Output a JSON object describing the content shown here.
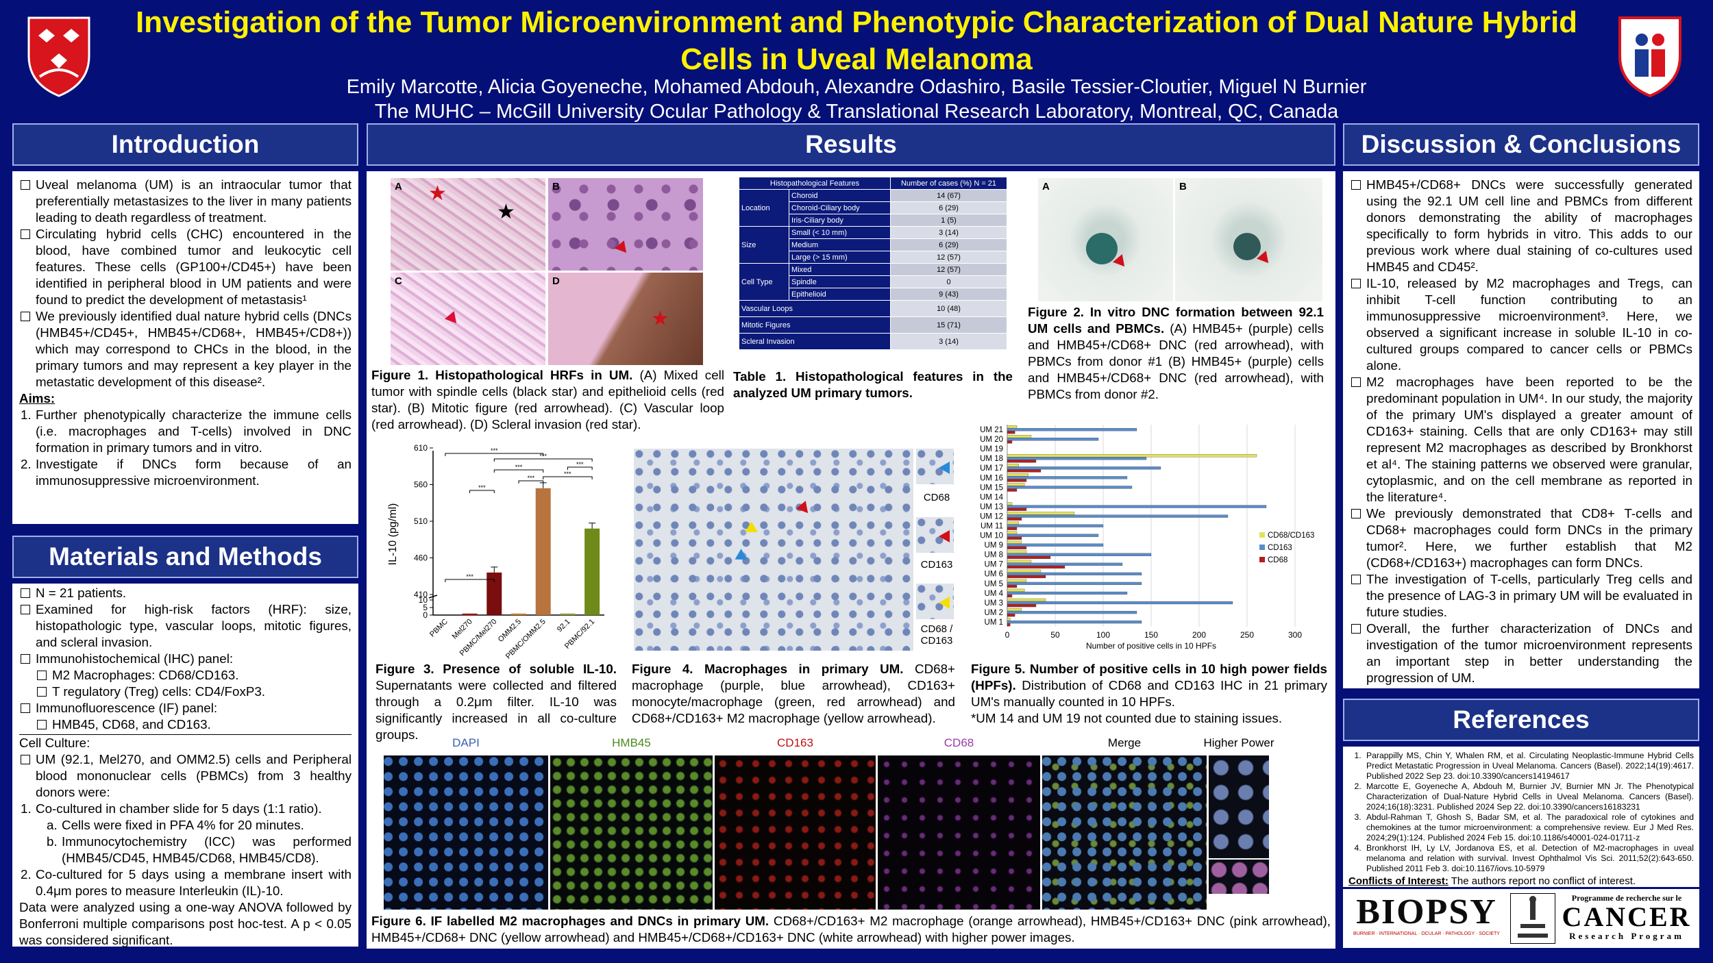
{
  "title": "Investigation of the Tumor Microenvironment and Phenotypic Characterization of Dual Nature Hybrid Cells in Uveal Melanoma",
  "authors": "Emily Marcotte, Alicia Goyeneche, Mohamed Abdouh, Alexandre Odashiro, Basile Tessier-Cloutier, Miguel N Burnier",
  "affiliation": "The MUHC – McGill University Ocular Pathology & Translational Research Laboratory, Montreal, QC, Canada",
  "sections": {
    "introduction": "Introduction",
    "methods": "Materials and Methods",
    "results": "Results",
    "discussion": "Discussion & Conclusions",
    "references": "References"
  },
  "intro": {
    "bullets": [
      "Uveal melanoma (UM) is an intraocular tumor that preferentially metastasizes to the liver in many patients leading to death regardless of treatment.",
      "Circulating hybrid cells (CHC) encountered in the blood, have combined tumor and leukocytic cell features. These cells (GP100+/CD45+) have been identified in peripheral blood in UM patients and were found to predict the development of metastasis¹",
      "We previously identified dual nature hybrid cells (DNCs (HMB45+/CD45+, HMB45+/CD68+, HMB45+/CD8+)) which may correspond to CHCs in the blood, in the primary tumors and may represent a key player in the metastatic development of this disease²."
    ],
    "aims_label": "Aims:",
    "aims": [
      "Further phenotypically characterize the immune cells (i.e. macrophages and T-cells) involved in DNC formation in primary tumors and in vitro.",
      "Investigate if DNCs form because of an immunosuppressive microenvironment."
    ]
  },
  "methods": {
    "bullets": [
      "N = 21 patients.",
      "Examined for high-risk factors (HRF): size, histopathologic type, vascular loops, mitotic figures, and scleral invasion.",
      "Immunohistochemical (IHC) panel:"
    ],
    "ihc_sub": [
      "M2 Macrophages: CD68/CD163.",
      "T regulatory (Treg) cells: CD4/FoxP3."
    ],
    "if_label": "Immunofluorescence (IF) panel:",
    "if_sub": [
      "HMB45, CD68, and CD163."
    ],
    "culture_label": "Cell Culture:",
    "culture_bullet": "UM (92.1, Mel270, and OMM2.5) cells and Peripheral blood mononuclear cells (PBMCs) from 3 healthy donors were:",
    "steps": [
      "Co-cultured in chamber slide for 5 days (1:1 ratio).",
      "Co-cultured for 5 days using a membrane insert with 0.4μm pores to measure Interleukin (IL)-10."
    ],
    "substeps": [
      "Cells were fixed in PFA 4% for 20 minutes.",
      "Immunocytochemistry (ICC) was performed (HMB45/CD45, HMB45/CD68, HMB45/CD8)."
    ],
    "closing": "Data were analyzed using a one-way ANOVA followed by Bonferroni multiple comparisons post hoc-test. A p < 0.05 was considered significant."
  },
  "fig1": {
    "panels": [
      "A",
      "B",
      "C",
      "D"
    ],
    "title": "Figure 1. Histopathological HRFs in UM.",
    "text": "(A) Mixed cell tumor with spindle cells (black star) and epithelioid cells (red star). (B) Mitotic figure (red arrowhead). (C) Vascular loop (red arrowhead). (D) Scleral invasion (red star)."
  },
  "table1": {
    "header": [
      "Histopathological Features",
      "Number of cases (%) N = 21"
    ],
    "rows": [
      [
        "Location",
        "Choroid",
        "14 (67)"
      ],
      [
        "",
        "Choroid-Ciliary body",
        "6 (29)"
      ],
      [
        "",
        "Iris-Ciliary body",
        "1 (5)"
      ],
      [
        "Size",
        "Small (< 10 mm)",
        "3 (14)"
      ],
      [
        "",
        "Medium",
        "6 (29)"
      ],
      [
        "",
        "Large (> 15 mm)",
        "12 (57)"
      ],
      [
        "Cell Type",
        "Mixed",
        "12 (57)"
      ],
      [
        "",
        "Spindle",
        "0"
      ],
      [
        "",
        "Epithelioid",
        "9 (43)"
      ],
      [
        "Vascular Loops",
        "",
        "10 (48)"
      ],
      [
        "Mitotic Figures",
        "",
        "15 (71)"
      ],
      [
        "Scleral Invasion",
        "",
        "3 (14)"
      ]
    ],
    "title": "Table 1. Histopathological features in the analyzed UM primary tumors."
  },
  "fig2": {
    "panels": [
      "A",
      "B"
    ],
    "title": "Figure 2. In vitro DNC formation between 92.1 UM cells and PBMCs.",
    "text": "(A) HMB45+ (purple) cells and HMB45+/CD68+ DNC (red arrowhead), with PBMCs from donor #1 (B) HMB45+ (purple) cells and HMB45+/CD68+ DNC (red arrowhead), with PBMCs from donor #2."
  },
  "fig3": {
    "title": "Figure 3. Presence of soluble IL-10.",
    "text": "Supernatants were collected and filtered through a 0.2μm filter. IL-10 was significantly increased in all co-culture groups.",
    "sig": "***"
  },
  "fig4": {
    "labels": [
      "CD68",
      "CD163",
      "CD68 / CD163"
    ],
    "title": "Figure 4. Macrophages in primary UM.",
    "text": "CD68+ macrophage (purple, blue arrowhead), CD163+ monocyte/macrophage (green, red arrowhead) and CD68+/CD163+ M2 macrophage (yellow arrowhead)."
  },
  "fig5": {
    "title": "Figure 5. Number of positive cells in 10 high power fields (HPFs).",
    "text": "Distribution of CD68 and CD163 IHC in 21 primary UM's manually counted in 10 HPFs.",
    "note": "*UM 14 and UM 19 not counted due to staining issues."
  },
  "fig6": {
    "columns": [
      "DAPI",
      "HMB45",
      "CD163",
      "CD68",
      "Merge",
      "Higher Power"
    ],
    "title": "Figure 6. IF labelled M2 macrophages and DNCs in primary UM.",
    "text": "CD68+/CD163+ M2 macrophage (orange arrowhead), HMB45+/CD163+ DNC (pink arrowhead), HMB45+/CD68+ DNC (yellow arrowhead) and HMB45+/CD68+/CD163+ DNC (white arrowhead) with higher power images."
  },
  "discussion": [
    "HMB45+/CD68+ DNCs were successfully generated using the 92.1 UM cell line and PBMCs from different donors demonstrating the ability of macrophages specifically to form hybrids in vitro. This adds to our previous work where dual staining of co-cultures used HMB45 and CD45².",
    "IL-10, released by M2 macrophages and Tregs, can inhibit T-cell function contributing to an immunosuppressive microenvironment³. Here, we observed a significant increase in soluble IL-10 in co-cultured groups compared to cancer cells or PBMCs alone.",
    "M2 macrophages have been reported to be the predominant population in UM⁴. In our study, the majority of the primary UM's displayed a greater amount of CD163+ staining. Cells that are only CD163+ may still represent M2 macrophages as described by Bronkhorst et al⁴. The staining patterns we observed were granular, cytoplasmic, and on the cell membrane as reported in the literature⁴.",
    "We previously demonstrated that CD8+ T-cells and CD68+ macrophages could form DNCs in the primary tumor². Here, we further establish that M2 (CD68+/CD163+) macrophages can form DNCs.",
    "The investigation of T-cells, particularly Treg cells and the presence of LAG-3 in primary UM will be evaluated in future studies.",
    "Overall, the further characterization of DNCs and investigation of the tumor microenvironment represents an important step in better understanding the progression of UM."
  ],
  "references": [
    "Parappilly MS, Chin Y, Whalen RM, et al. Circulating Neoplastic-Immune Hybrid Cells Predict Metastatic Progression in Uveal Melanoma. Cancers (Basel). 2022;14(19):4617. Published 2022 Sep 23. doi:10.3390/cancers14194617",
    "Marcotte E, Goyeneche A, Abdouh M, Burnier JV, Burnier MN Jr. The Phenotypical Characterization of Dual-Nature Hybrid Cells in Uveal Melanoma. Cancers (Basel). 2024;16(18):3231. Published 2024 Sep 22. doi:10.3390/cancers16183231",
    "Abdul-Rahman T, Ghosh S, Badar SM, et al. The paradoxical role of cytokines and chemokines at the tumor microenvironment: a comprehensive review. Eur J Med Res. 2024;29(1):124. Published 2024 Feb 15. doi:10.1186/s40001-024-01711-z",
    "Bronkhorst IH, Ly LV, Jordanova ES, et al. Detection of M2-macrophages in uveal melanoma and relation with survival. Invest Ophthalmol Vis Sci. 2011;52(2):643-650. Published 2011 Feb 3. doi:10.1167/iovs.10-5979"
  ],
  "coi_label": "Conflicts of Interest:",
  "coi_text": "The authors report no conflict of interest.",
  "logos": {
    "biopsy": "BIOPSY",
    "biopsy_sub": "BURNIER · INTERNATIONAL · OCULAR · PATHOLOGY · SOCIETY",
    "cancer_top": "Programme de recherche sur le",
    "cancer_main": "CANCER",
    "cancer_sub": "Research Program"
  },
  "colors": {
    "background": "#050f78",
    "title": "#fff200",
    "header": "#1c3188"
  },
  "chart_data": [
    {
      "type": "bar",
      "categories": [
        "PBMC",
        "Mel270",
        "PBMC/Mel270",
        "OMM2.5",
        "PBMC/OMM2.5",
        "92.1",
        "PBMC/92.1"
      ],
      "values": [
        15,
        1,
        440,
        1,
        555,
        1,
        500
      ],
      "colors": [
        "#1f4fd0",
        "#b01010",
        "#7a0d0d",
        "#c47f2a",
        "#b8743c",
        "#8aa032",
        "#6f8a18"
      ],
      "ylabel": "IL-10 (pg/ml)",
      "yticks": [
        0,
        5,
        10,
        410,
        460,
        510,
        560,
        610
      ],
      "significance": "***"
    },
    {
      "type": "bar",
      "orientation": "horizontal",
      "categories": [
        "UM 1",
        "UM 2",
        "UM 3",
        "UM 4",
        "UM 5",
        "UM 6",
        "UM 7",
        "UM 8",
        "UM 9",
        "UM 10",
        "UM 11",
        "UM 12",
        "UM 13",
        "UM 14",
        "UM 15",
        "UM 16",
        "UM 17",
        "UM 18",
        "UM 19",
        "UM 20",
        "UM 21"
      ],
      "series": [
        {
          "name": "CD68/CD163",
          "color": "#e2e25c",
          "values": [
            3,
            15,
            40,
            18,
            20,
            35,
            25,
            20,
            15,
            10,
            12,
            70,
            5,
            0,
            18,
            22,
            12,
            260,
            0,
            25,
            10
          ]
        },
        {
          "name": "CD163",
          "color": "#5b8cc8",
          "values": [
            140,
            135,
            235,
            125,
            140,
            140,
            120,
            150,
            100,
            95,
            100,
            230,
            270,
            0,
            130,
            125,
            160,
            145,
            0,
            95,
            135
          ]
        },
        {
          "name": "CD68",
          "color": "#b02020",
          "values": [
            3,
            8,
            30,
            5,
            10,
            40,
            60,
            45,
            20,
            15,
            10,
            15,
            20,
            0,
            10,
            20,
            35,
            30,
            0,
            5,
            8
          ]
        }
      ],
      "xlabel": "Number of positive cells in 10 HPFs",
      "xlim": [
        0,
        300
      ],
      "xticks": [
        0,
        50,
        100,
        150,
        200,
        250,
        300
      ]
    }
  ]
}
